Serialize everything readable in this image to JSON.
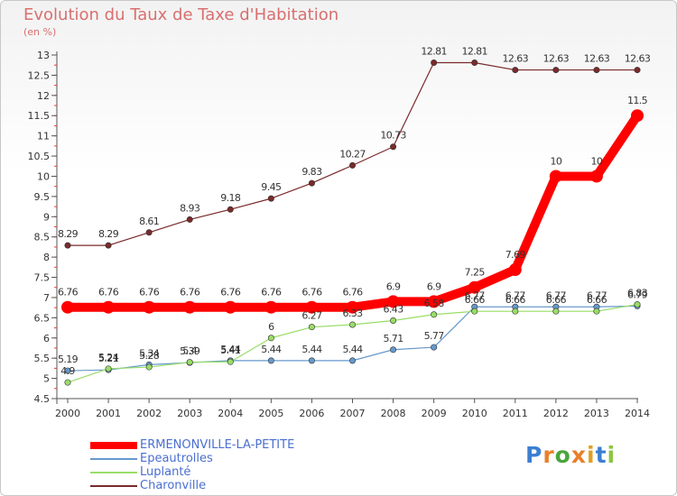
{
  "title": "Evolution du Taux de Taxe d'Habitation",
  "unit": "(en %)",
  "brand": "Proxiti",
  "chart_data": {
    "type": "line",
    "title": "Evolution du Taux de Taxe d'Habitation",
    "ylabel": "(en %)",
    "xlabel": "",
    "ylim": [
      4.5,
      13
    ],
    "grid": false,
    "x": [
      "2000",
      "2001",
      "2002",
      "2003",
      "2004",
      "2005",
      "2006",
      "2007",
      "2008",
      "2009",
      "2010",
      "2011",
      "2012",
      "2013",
      "2014"
    ],
    "yticks": [
      4.5,
      5,
      5.5,
      6,
      6.5,
      7,
      7.5,
      8,
      8.5,
      9,
      9.5,
      10,
      10.5,
      11,
      11.5,
      12,
      12.5,
      13
    ],
    "series": [
      {
        "name": "ERMENONVILLE-LA-PETITE",
        "color": "#ff0000",
        "values": [
          6.76,
          6.76,
          6.76,
          6.76,
          6.76,
          6.76,
          6.76,
          6.76,
          6.9,
          6.9,
          7.25,
          7.69,
          10,
          10,
          11.5
        ],
        "labels": [
          "6.76",
          "6.76",
          "6.76",
          "6.76",
          "6.76",
          "6.76",
          "6.76",
          "6.76",
          "6.9",
          "6.9",
          "7.25",
          "7.69",
          "10",
          "10",
          "11.5"
        ]
      },
      {
        "name": "Epeautrolles",
        "color": "#6699cc",
        "values": [
          5.19,
          5.21,
          5.34,
          5.39,
          5.44,
          5.44,
          5.44,
          5.44,
          5.71,
          5.77,
          6.77,
          6.77,
          6.77,
          6.77,
          6.79
        ],
        "labels": [
          "5.19",
          "5.21",
          "5.34",
          "5.39",
          "5.44",
          "5.44",
          "5.44",
          "5.44",
          "5.71",
          "5.77",
          "6.77",
          "6.77",
          "6.77",
          "6.77",
          "6.79"
        ]
      },
      {
        "name": "Luplanté",
        "color": "#99dd66",
        "values": [
          4.9,
          5.24,
          5.28,
          5.4,
          5.41,
          6,
          6.27,
          6.33,
          6.43,
          6.58,
          6.66,
          6.66,
          6.66,
          6.66,
          6.83
        ],
        "labels": [
          "4.9",
          "5.24",
          "5.28",
          "5.4",
          "5.41",
          "6",
          "6.27",
          "6.33",
          "6.43",
          "6.58",
          "6.66",
          "6.66",
          "6.66",
          "6.66",
          "6.83"
        ]
      },
      {
        "name": "Charonville",
        "color": "#7a2a2a",
        "values": [
          8.29,
          8.29,
          8.61,
          8.93,
          9.18,
          9.45,
          9.83,
          10.27,
          10.73,
          12.81,
          12.81,
          12.63,
          12.63,
          12.63,
          12.63
        ],
        "labels": [
          "8.29",
          "8.29",
          "8.61",
          "8.93",
          "9.18",
          "9.45",
          "9.83",
          "10.27",
          "10.73",
          "12.81",
          "12.81",
          "12.63",
          "12.63",
          "12.63",
          "12.63"
        ]
      }
    ]
  }
}
